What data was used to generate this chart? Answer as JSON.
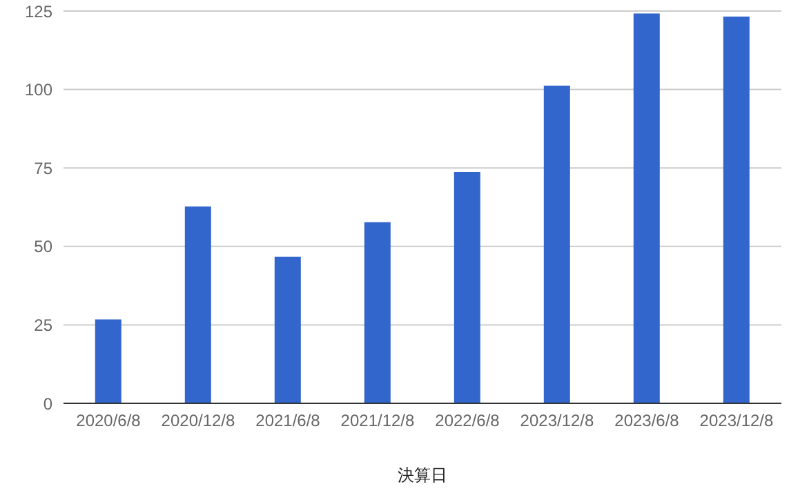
{
  "chart_data": {
    "type": "bar",
    "xlabel": "決算日",
    "categories": [
      "2020/6/8",
      "2020/12/8",
      "2021/6/8",
      "2021/12/8",
      "2022/6/8",
      "2023/12/8",
      "2023/6/8",
      "2023/12/8"
    ],
    "values": [
      26.5,
      62.5,
      46.5,
      57.5,
      73.5,
      101,
      124,
      123
    ],
    "color": "#3366cc",
    "ylim": [
      0,
      125
    ],
    "yticks": [
      0,
      25,
      50,
      75,
      100,
      125
    ],
    "grid": "y"
  }
}
